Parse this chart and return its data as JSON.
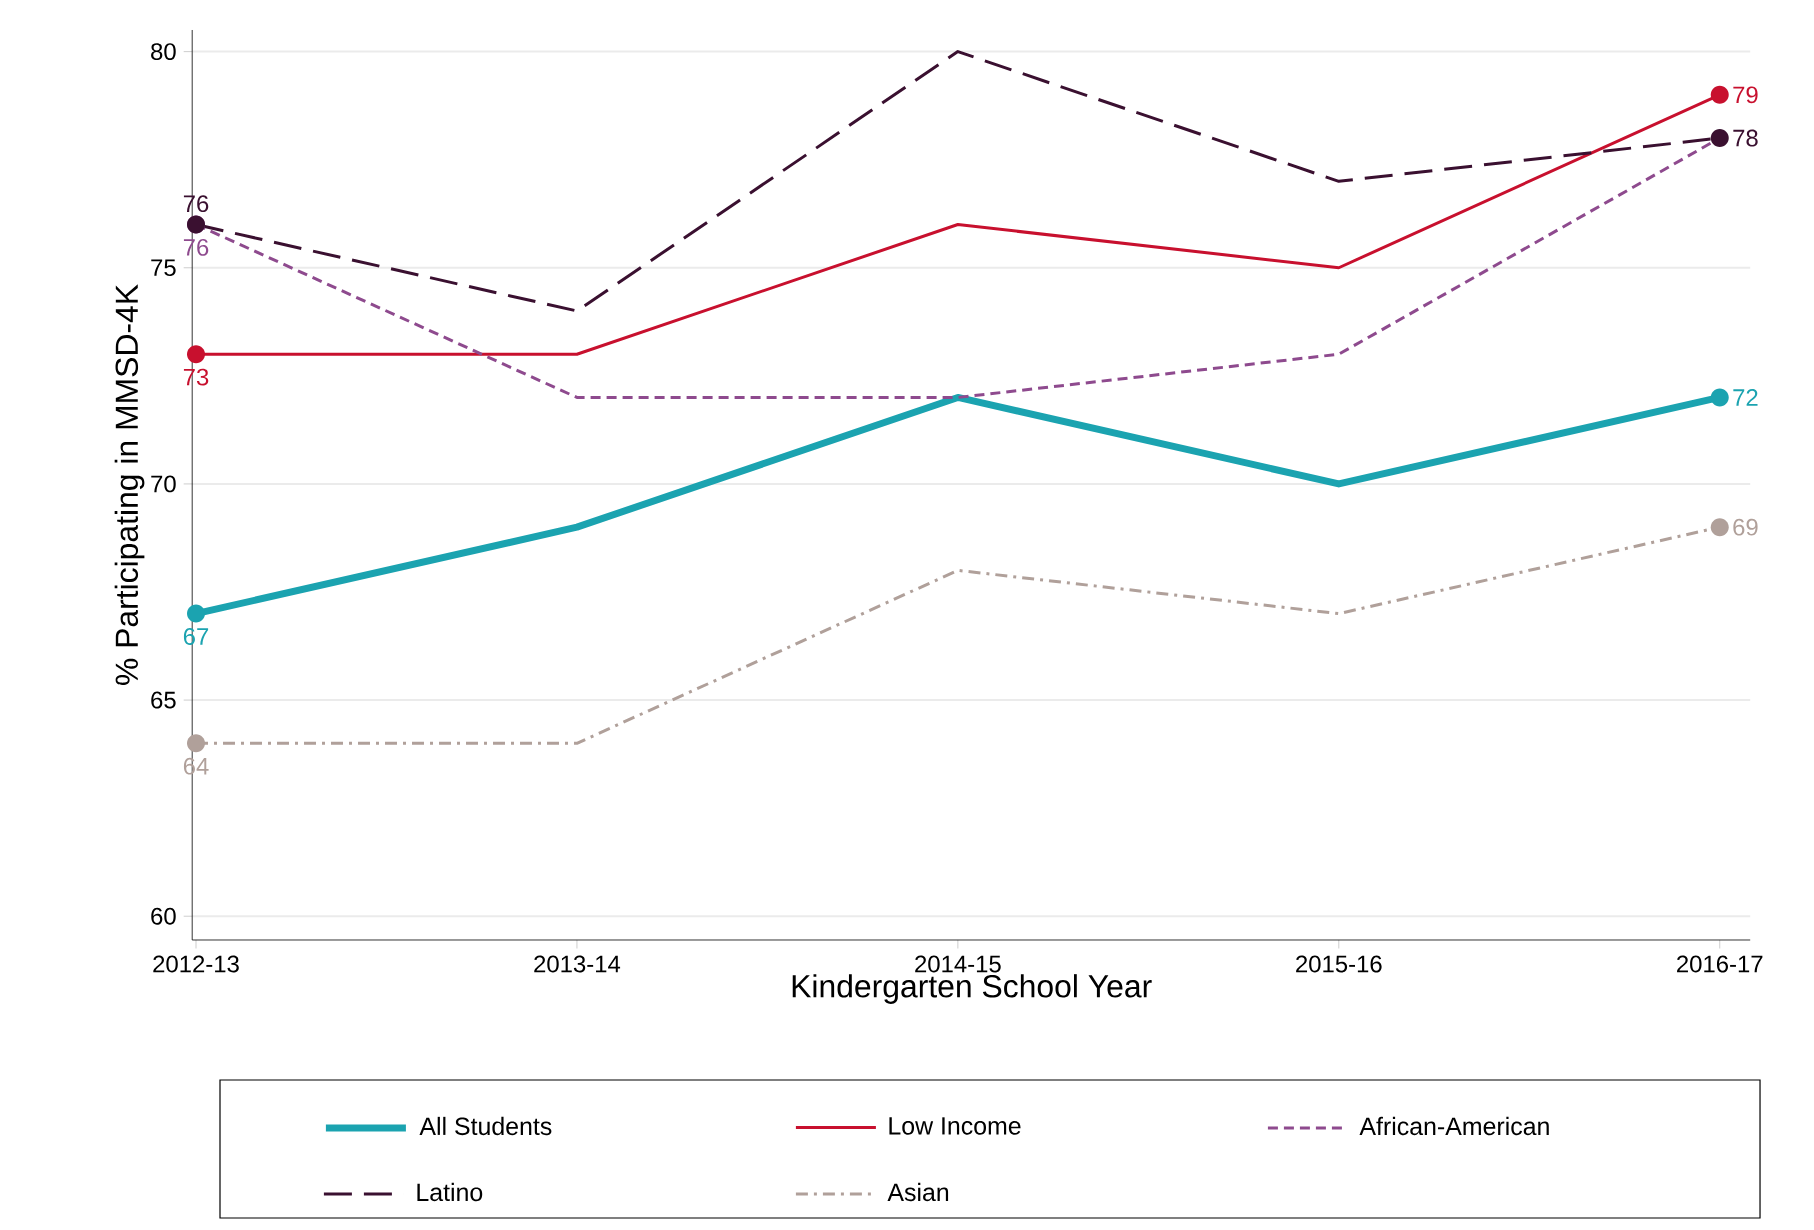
{
  "chart_data": {
    "type": "line",
    "xlabel": "Kindergarten School Year",
    "ylabel": "% Participating in MMSD-4K",
    "categories": [
      "2012-13",
      "2013-14",
      "2014-15",
      "2015-16",
      "2016-17"
    ],
    "ylim": [
      59.45,
      80.5
    ],
    "yticks": [
      60,
      65,
      70,
      75,
      80
    ],
    "grid": "y",
    "legend": "bottom",
    "series": [
      {
        "name": "All Students",
        "color": "#1ba3b0",
        "line_style": "solid",
        "values": [
          67,
          69,
          72,
          70,
          72
        ],
        "value_labels": [
          "67",
          null,
          null,
          null,
          "72"
        ]
      },
      {
        "name": "Low Income",
        "color": "#c8102e",
        "line_style": "solid",
        "values": [
          73,
          73,
          76,
          75,
          79
        ],
        "value_labels": [
          "73",
          null,
          null,
          null,
          "79"
        ]
      },
      {
        "name": "African-American",
        "color": "#8e4a8e",
        "line_style": "dashed",
        "values": [
          76,
          72,
          72,
          73,
          78
        ],
        "value_labels": [
          "76",
          null,
          null,
          null,
          null
        ]
      },
      {
        "name": "Latino",
        "color": "#3a1030",
        "line_style": "longdash",
        "values": [
          76,
          74,
          80,
          77,
          78
        ],
        "value_labels": [
          "76",
          null,
          null,
          null,
          "78"
        ]
      },
      {
        "name": "Asian",
        "color": "#b0a09a",
        "line_style": "dashdot",
        "values": [
          64,
          64,
          68,
          67,
          69
        ],
        "value_labels": [
          "64",
          null,
          null,
          null,
          "69"
        ]
      }
    ]
  }
}
